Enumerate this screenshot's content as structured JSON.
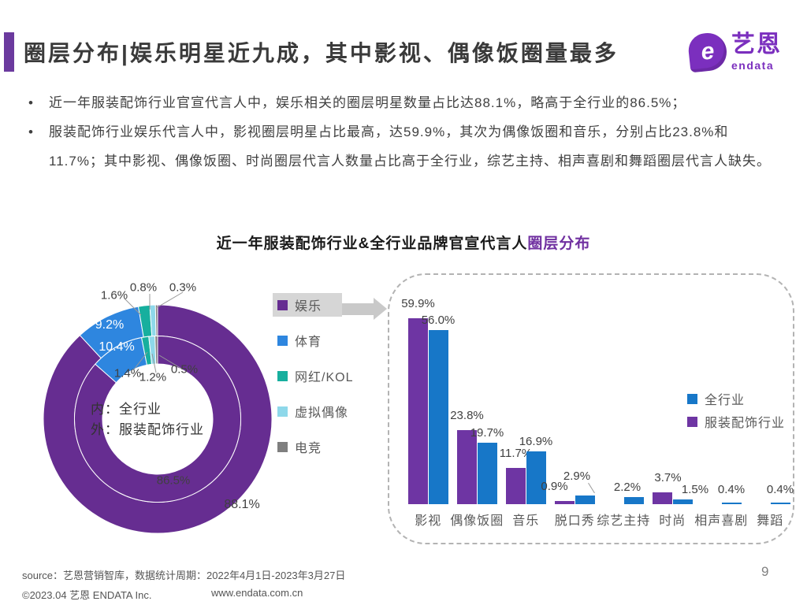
{
  "header": {
    "title": "圈层分布|娱乐明星近九成，其中影视、偶像饭圈量最多",
    "logo": {
      "icon": "e",
      "brand": "艺恩",
      "sub": "endata"
    }
  },
  "bullets": [
    "近一年服装配饰行业官宣代言人中，娱乐相关的圈层明星数量占比达88.1%，略高于全行业的86.5%；",
    "服装配饰行业娱乐代言人中，影视圈层明星占比最高，达59.9%，其次为偶像饭圈和音乐，分别占比23.8%和11.7%；其中影视、偶像饭圈、时尚圈层代言人数量占比高于全行业，综艺主持、相声喜剧和舞蹈圈层代言人缺失。"
  ],
  "chart_title": {
    "main": "近一年服装配饰行业&全行业品牌官宣代言人",
    "highlight": "圈层分布"
  },
  "chart_data": [
    {
      "type": "pie",
      "subtype": "double-ring-donut",
      "categories": [
        "娱乐",
        "体育",
        "网红/KOL",
        "虚拟偶像",
        "电竞"
      ],
      "colors": [
        "#662D91",
        "#2E86DF",
        "#17AF9E",
        "#8ED8EA",
        "#7F7F7F"
      ],
      "rings": [
        {
          "name": "服装配饰行业",
          "position": "outer",
          "values": [
            88.1,
            9.2,
            1.6,
            0.8,
            0.3
          ]
        },
        {
          "name": "全行业",
          "position": "inner",
          "values": [
            86.5,
            10.4,
            1.4,
            1.2,
            0.5
          ]
        }
      ],
      "center_label_lines": [
        "内：全行业",
        "外：服装配饰行业"
      ],
      "legend_highlight_index": 0,
      "legend_position": "right"
    },
    {
      "type": "bar",
      "categories": [
        "影视",
        "偶像饭圈",
        "音乐",
        "脱口秀",
        "综艺主持",
        "时尚",
        "相声喜剧",
        "舞蹈"
      ],
      "series": [
        {
          "name": "服装配饰行业",
          "color": "#6E35A3",
          "values": [
            59.9,
            23.8,
            11.7,
            0.9,
            null,
            3.7,
            null,
            null
          ]
        },
        {
          "name": "全行业",
          "color": "#1777C8",
          "values": [
            56.0,
            19.7,
            16.9,
            2.9,
            2.2,
            1.5,
            0.4,
            0.4
          ]
        }
      ],
      "legend": [
        {
          "label": "全行业",
          "color": "#1777C8"
        },
        {
          "label": "服装配饰行业",
          "color": "#6E35A3"
        }
      ],
      "ylim": [
        0,
        65
      ],
      "grid": false,
      "value_label_suffix": "%"
    }
  ],
  "footer": {
    "source": "source：艺恩营销智库，数据统计周期：2022年4月1日-2023年3月27日",
    "copyright": "©2023.04 艺恩 ENDATA Inc.",
    "website": "www.endata.com.cn",
    "page_number": "9"
  }
}
